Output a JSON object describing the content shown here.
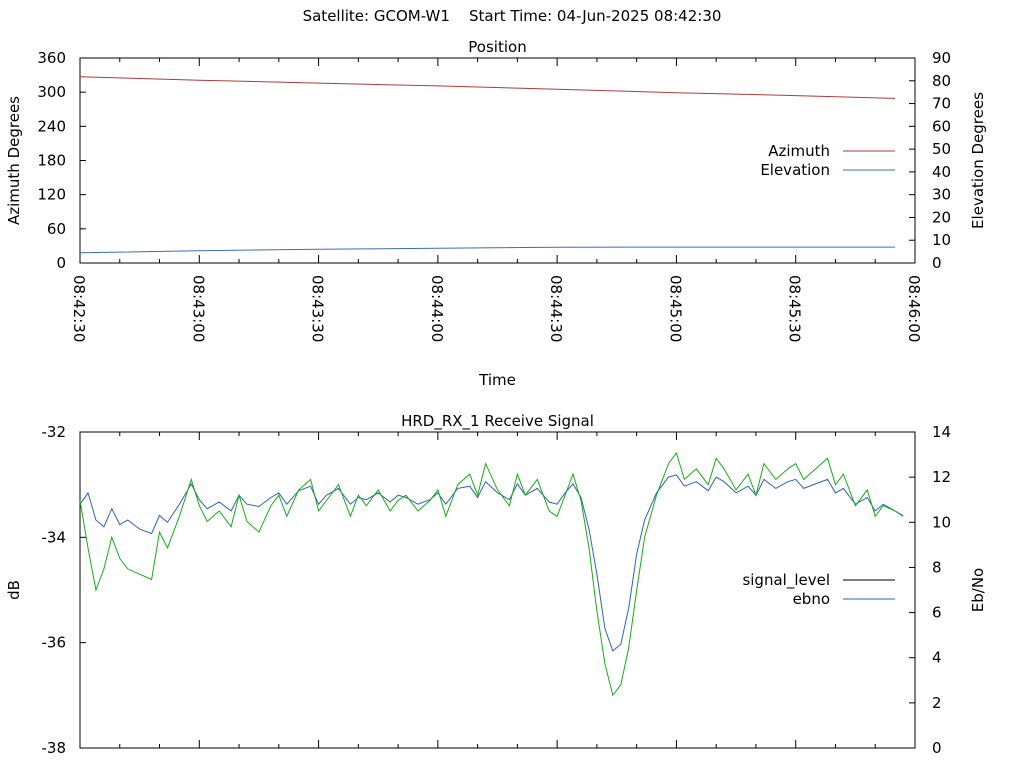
{
  "header": {
    "satellite_text": "Satellite: GCOM-W1",
    "start_time_text": "Start Time: 04-Jun-2025 08:42:30"
  },
  "colors": {
    "azimuth": "#b03a3a",
    "elevation": "#3a6fb0",
    "signal_level": "#000000",
    "ebno_line": "#2e64b4",
    "signal_trace": "#1aaa1a",
    "axis": "#000000",
    "background": "#ffffff"
  },
  "chart_data": [
    {
      "type": "line",
      "title": "Position",
      "xlabel": "Time",
      "ylabel": "Azimuth Degrees",
      "y2label": "Elevation Degrees",
      "x_ticks": [
        "08:42:30",
        "08:43:00",
        "08:43:30",
        "08:44:00",
        "08:44:30",
        "08:45:00",
        "08:45:30",
        "08:46:00"
      ],
      "x_range_seconds": [
        0,
        210
      ],
      "ylim": [
        0,
        360
      ],
      "y_ticks": [
        "0",
        "60",
        "120",
        "180",
        "240",
        "300",
        "360"
      ],
      "y2lim": [
        0,
        90
      ],
      "y2_ticks": [
        "0",
        "10",
        "20",
        "30",
        "40",
        "50",
        "60",
        "70",
        "80",
        "90"
      ],
      "legend_position": "right",
      "series": [
        {
          "name": "Azimuth",
          "axis": "left",
          "x": [
            0,
            30,
            60,
            90,
            120,
            150,
            180,
            205
          ],
          "values": [
            327,
            321,
            316,
            311,
            305,
            299,
            294,
            289
          ]
        },
        {
          "name": "Elevation",
          "axis": "right",
          "x": [
            0,
            30,
            60,
            90,
            120,
            150,
            180,
            205
          ],
          "values": [
            4.5,
            5.4,
            6.0,
            6.5,
            6.9,
            7.0,
            7.0,
            7.0
          ]
        }
      ]
    },
    {
      "type": "line",
      "title": "HRD_RX_1 Receive Signal",
      "xlabel": "",
      "ylabel": "dB",
      "y2label": "Eb/No",
      "x_range_seconds": [
        0,
        210
      ],
      "ylim": [
        -38,
        -32
      ],
      "y_ticks": [
        "-38",
        "-36",
        "-34",
        "-32"
      ],
      "y2lim": [
        0,
        14
      ],
      "y2_ticks": [
        "0",
        "2",
        "4",
        "6",
        "8",
        "10",
        "12",
        "14"
      ],
      "legend_position": "right",
      "series": [
        {
          "name": "signal_level",
          "axis": "left",
          "x": [
            0,
            2,
            4,
            6,
            8,
            10,
            12,
            15,
            18,
            20,
            22,
            25,
            28,
            30,
            32,
            35,
            38,
            40,
            42,
            45,
            48,
            50,
            52,
            55,
            58,
            60,
            62,
            65,
            68,
            70,
            72,
            75,
            78,
            80,
            82,
            85,
            88,
            90,
            92,
            95,
            98,
            100,
            102,
            105,
            108,
            110,
            112,
            115,
            118,
            120,
            122,
            124,
            126,
            128,
            130,
            132,
            134,
            136,
            138,
            140,
            142,
            145,
            148,
            150,
            152,
            155,
            158,
            160,
            162,
            165,
            168,
            170,
            172,
            175,
            178,
            180,
            182,
            185,
            188,
            190,
            192,
            195,
            198,
            200,
            202,
            205,
            207
          ],
          "values": [
            -33.3,
            -34.2,
            -35.0,
            -34.6,
            -34.0,
            -34.4,
            -34.6,
            -34.7,
            -34.8,
            -33.9,
            -34.2,
            -33.6,
            -32.9,
            -33.4,
            -33.7,
            -33.5,
            -33.8,
            -33.2,
            -33.7,
            -33.9,
            -33.4,
            -33.2,
            -33.6,
            -33.1,
            -32.9,
            -33.5,
            -33.3,
            -33.0,
            -33.6,
            -33.2,
            -33.4,
            -33.1,
            -33.5,
            -33.3,
            -33.2,
            -33.5,
            -33.3,
            -33.1,
            -33.6,
            -33.0,
            -32.8,
            -33.2,
            -32.6,
            -33.1,
            -33.4,
            -32.8,
            -33.2,
            -32.9,
            -33.5,
            -33.6,
            -33.2,
            -32.8,
            -33.3,
            -34.2,
            -35.4,
            -36.4,
            -37.0,
            -36.8,
            -36.1,
            -35.0,
            -34.0,
            -33.2,
            -32.6,
            -32.4,
            -32.9,
            -32.7,
            -33.0,
            -32.5,
            -32.7,
            -33.1,
            -32.8,
            -33.2,
            -32.6,
            -32.9,
            -32.7,
            -32.6,
            -32.9,
            -32.7,
            -32.5,
            -33.0,
            -32.8,
            -33.4,
            -33.1,
            -33.6,
            -33.4,
            -33.5,
            -33.6
          ]
        },
        {
          "name": "ebno",
          "axis": "right",
          "x": [
            0,
            2,
            4,
            6,
            8,
            10,
            12,
            15,
            18,
            20,
            22,
            25,
            28,
            30,
            32,
            35,
            38,
            40,
            42,
            45,
            48,
            50,
            52,
            55,
            58,
            60,
            62,
            65,
            68,
            70,
            72,
            75,
            78,
            80,
            82,
            85,
            88,
            90,
            92,
            95,
            98,
            100,
            102,
            105,
            108,
            110,
            112,
            115,
            118,
            120,
            122,
            124,
            126,
            128,
            130,
            132,
            134,
            136,
            138,
            140,
            142,
            145,
            148,
            150,
            152,
            155,
            158,
            160,
            162,
            165,
            168,
            170,
            172,
            175,
            178,
            180,
            182,
            185,
            188,
            190,
            192,
            195,
            198,
            200,
            202,
            205,
            207
          ],
          "values": [
            10.8,
            11.3,
            10.1,
            9.8,
            10.6,
            9.9,
            10.1,
            9.7,
            9.5,
            10.3,
            10.0,
            10.8,
            11.7,
            11.0,
            10.6,
            10.9,
            10.5,
            11.2,
            10.8,
            10.7,
            11.1,
            11.3,
            10.8,
            11.4,
            11.6,
            10.8,
            11.2,
            11.5,
            10.8,
            11.1,
            11.0,
            11.3,
            10.9,
            11.2,
            11.1,
            10.8,
            11.0,
            11.3,
            10.8,
            11.5,
            11.6,
            11.1,
            11.8,
            11.3,
            11.0,
            11.7,
            11.2,
            11.5,
            10.9,
            10.8,
            11.3,
            11.7,
            11.1,
            9.7,
            7.7,
            5.3,
            4.3,
            4.6,
            6.2,
            8.6,
            10.1,
            11.3,
            12.0,
            12.1,
            11.6,
            11.8,
            11.4,
            12.0,
            11.8,
            11.3,
            11.6,
            11.2,
            11.9,
            11.5,
            11.8,
            11.9,
            11.5,
            11.7,
            11.9,
            11.3,
            11.5,
            10.8,
            11.1,
            10.5,
            10.8,
            10.5,
            10.3
          ]
        },
        {
          "name": "",
          "axis": "left",
          "x": [
            0,
            2,
            4,
            6,
            8,
            10,
            12,
            15,
            18,
            20,
            22,
            25,
            28,
            30,
            32,
            35,
            38,
            40,
            42,
            45,
            48,
            50,
            52,
            55,
            58,
            60,
            62,
            65,
            68,
            70,
            72,
            75,
            78,
            80,
            82,
            85,
            88,
            90,
            92,
            95,
            98,
            100,
            102,
            105,
            108,
            110,
            112,
            115,
            118,
            120,
            122,
            124,
            126,
            128,
            130,
            132,
            134,
            136,
            138,
            140,
            142,
            145,
            148,
            150,
            152,
            155,
            158,
            160,
            162,
            165,
            168,
            170,
            172,
            175,
            178,
            180,
            182,
            185,
            188,
            190,
            192,
            195,
            198,
            200,
            202,
            205,
            207
          ],
          "values": [
            -33.3,
            -34.2,
            -35.0,
            -34.6,
            -34.0,
            -34.4,
            -34.6,
            -34.7,
            -34.8,
            -33.9,
            -34.2,
            -33.6,
            -32.9,
            -33.4,
            -33.7,
            -33.5,
            -33.8,
            -33.2,
            -33.7,
            -33.9,
            -33.4,
            -33.2,
            -33.6,
            -33.1,
            -32.9,
            -33.5,
            -33.3,
            -33.0,
            -33.6,
            -33.2,
            -33.4,
            -33.1,
            -33.5,
            -33.3,
            -33.2,
            -33.5,
            -33.3,
            -33.1,
            -33.6,
            -33.0,
            -32.8,
            -33.2,
            -32.6,
            -33.1,
            -33.4,
            -32.8,
            -33.2,
            -32.9,
            -33.5,
            -33.6,
            -33.2,
            -32.8,
            -33.3,
            -34.2,
            -35.4,
            -36.4,
            -37.0,
            -36.8,
            -36.1,
            -35.0,
            -34.0,
            -33.2,
            -32.6,
            -32.4,
            -32.9,
            -32.7,
            -33.0,
            -32.5,
            -32.7,
            -33.1,
            -32.8,
            -33.2,
            -32.6,
            -32.9,
            -32.7,
            -32.6,
            -32.9,
            -32.7,
            -32.5,
            -33.0,
            -32.8,
            -33.4,
            -33.1,
            -33.6,
            -33.4,
            -33.5,
            -33.6
          ]
        }
      ]
    }
  ]
}
